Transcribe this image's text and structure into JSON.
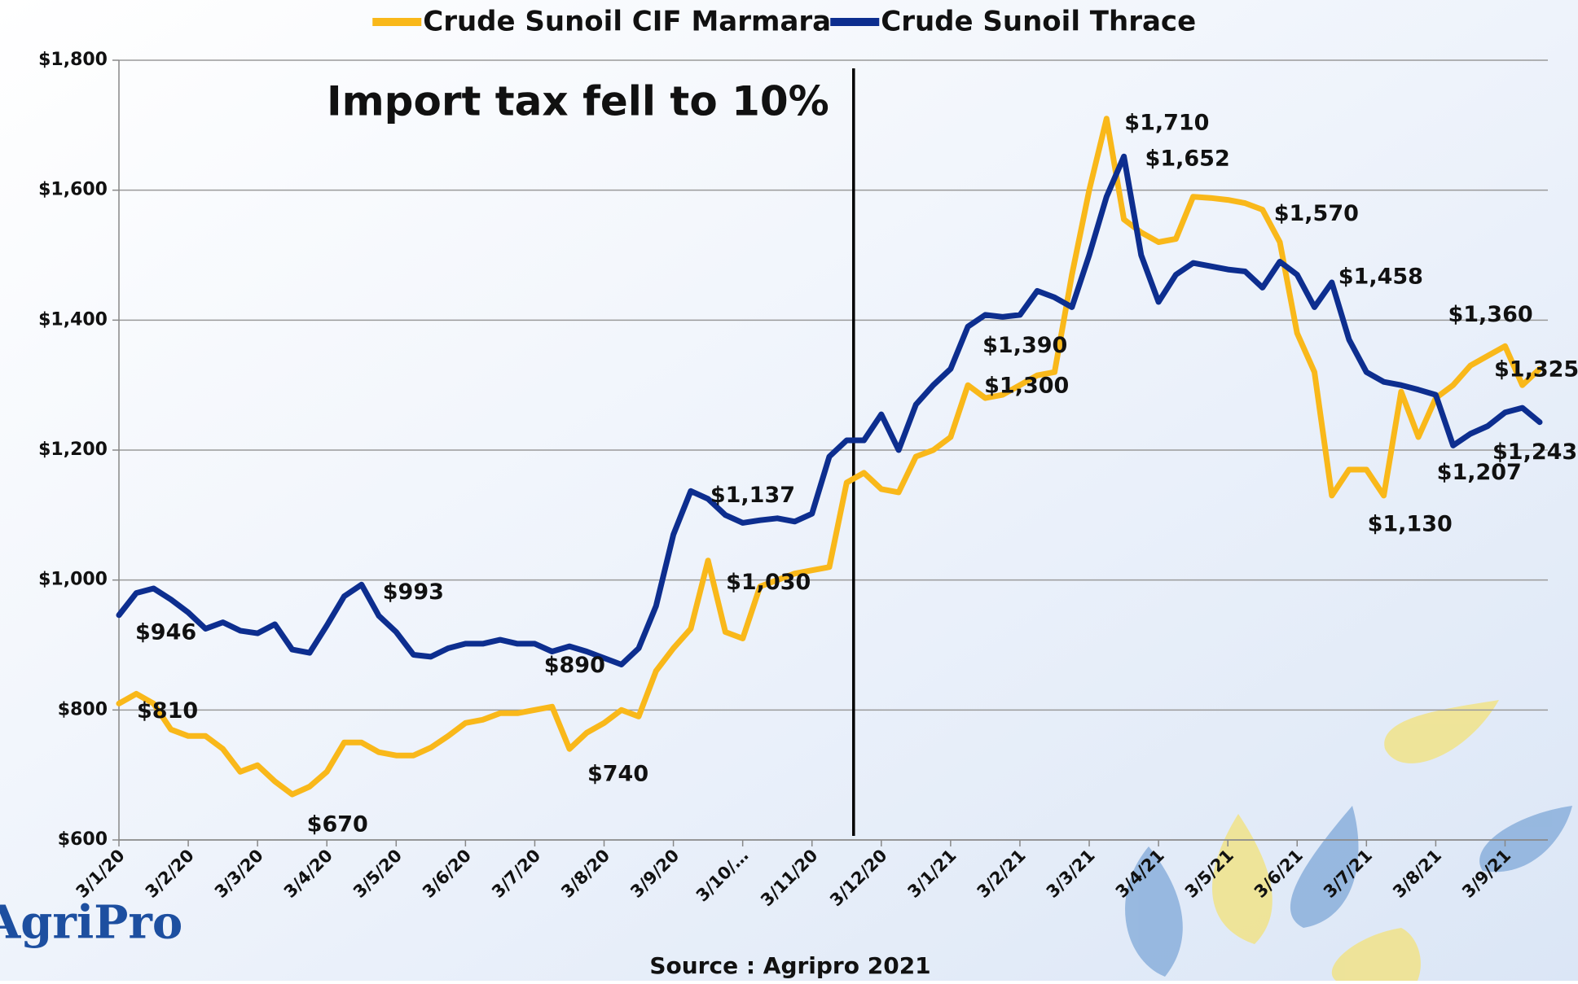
{
  "chart_data": {
    "type": "line",
    "legend": "top",
    "annotation": "Import tax fell to 10%",
    "source": "Source : Agripro 2021",
    "logo": "AgriPro",
    "categories": [
      "3/1/20",
      null,
      null,
      null,
      "3/2/20",
      null,
      null,
      null,
      "3/3/20",
      null,
      null,
      null,
      "3/4/20",
      null,
      null,
      null,
      "3/5/20",
      null,
      null,
      null,
      "3/6/20",
      null,
      null,
      null,
      "3/7/20",
      null,
      null,
      null,
      "3/8/20",
      null,
      null,
      null,
      "3/9/20",
      null,
      null,
      null,
      "3/10/…",
      null,
      null,
      null,
      "3/11/20",
      null,
      null,
      null,
      "3/12/20",
      null,
      null,
      null,
      "3/1/21",
      null,
      null,
      null,
      "3/2/21",
      null,
      null,
      null,
      "3/3/21",
      null,
      null,
      null,
      "3/4/21",
      null,
      null,
      null,
      "3/5/21",
      null,
      null,
      null,
      "3/6/21",
      null,
      null,
      null,
      "3/7/21",
      null,
      null,
      null,
      "3/8/21",
      null,
      null,
      null,
      "3/9/21",
      null,
      null
    ],
    "series": [
      {
        "name": "Crude Sunoil CIF Marmara",
        "color": "#f9b81a",
        "values": [
          810,
          825,
          810,
          770,
          760,
          760,
          740,
          705,
          715,
          690,
          670,
          682,
          705,
          750,
          750,
          735,
          730,
          730,
          742,
          760,
          780,
          785,
          795,
          795,
          800,
          805,
          740,
          765,
          780,
          800,
          790,
          860,
          895,
          925,
          1030,
          920,
          910,
          990,
          1000,
          1010,
          1015,
          1020,
          1150,
          1165,
          1140,
          1135,
          1190,
          1200,
          1220,
          1300,
          1280,
          1285,
          1300,
          1315,
          1320,
          1470,
          1600,
          1710,
          1555,
          1535,
          1520,
          1525,
          1590,
          1588,
          1585,
          1580,
          1570,
          1520,
          1380,
          1320,
          1130,
          1170,
          1170,
          1130,
          1290,
          1220,
          1280,
          1300,
          1330,
          1345,
          1360,
          1300,
          1325
        ],
        "value_labels": [
          "$810",
          null,
          null,
          null,
          null,
          null,
          null,
          null,
          null,
          null,
          "$670",
          null,
          null,
          null,
          null,
          null,
          null,
          null,
          null,
          null,
          null,
          null,
          null,
          null,
          null,
          null,
          "$740",
          null,
          null,
          null,
          null,
          null,
          null,
          null,
          "$1,030",
          null,
          null,
          null,
          null,
          null,
          null,
          null,
          null,
          null,
          null,
          null,
          null,
          null,
          null,
          "$1,300",
          null,
          null,
          null,
          null,
          null,
          null,
          null,
          "$1,710",
          null,
          null,
          null,
          null,
          null,
          null,
          null,
          null,
          "$1,570",
          null,
          null,
          null,
          null,
          null,
          null,
          "$1,130",
          null,
          null,
          null,
          null,
          null,
          null,
          "$1,360",
          null,
          "$1,325"
        ]
      },
      {
        "name": "Crude Sunoil Thrace",
        "color": "#0d2e8f",
        "values": [
          946,
          980,
          987,
          970,
          950,
          925,
          935,
          922,
          918,
          932,
          893,
          888,
          930,
          975,
          993,
          945,
          920,
          885,
          882,
          895,
          902,
          902,
          908,
          902,
          902,
          890,
          898,
          890,
          880,
          870,
          895,
          960,
          1070,
          1137,
          1125,
          1100,
          1088,
          1092,
          1095,
          1090,
          1102,
          1190,
          1215,
          1215,
          1255,
          1200,
          1270,
          1300,
          1325,
          1390,
          1408,
          1405,
          1408,
          1445,
          1435,
          1420,
          1500,
          1590,
          1652,
          1500,
          1428,
          1470,
          1488,
          1483,
          1478,
          1475,
          1450,
          1490,
          1470,
          1420,
          1458,
          1370,
          1320,
          1305,
          1300,
          1293,
          1285,
          1207,
          1225,
          1237,
          1258,
          1265,
          1243
        ],
        "value_labels": [
          "$946",
          null,
          null,
          null,
          null,
          null,
          null,
          null,
          null,
          null,
          null,
          null,
          null,
          null,
          "$993",
          null,
          null,
          null,
          null,
          null,
          null,
          null,
          null,
          null,
          null,
          "$890",
          null,
          null,
          null,
          null,
          null,
          null,
          null,
          "$1,137",
          null,
          null,
          null,
          null,
          null,
          null,
          null,
          null,
          null,
          null,
          null,
          null,
          null,
          null,
          null,
          "$1,390",
          null,
          null,
          null,
          null,
          null,
          null,
          null,
          null,
          "$1,652",
          null,
          null,
          null,
          null,
          null,
          null,
          null,
          null,
          null,
          null,
          null,
          "$1,458",
          null,
          null,
          null,
          null,
          null,
          null,
          "$1,207",
          null,
          null,
          null,
          null,
          "$1,243"
        ]
      }
    ],
    "ylim": [
      600,
      1800
    ],
    "yticks": [
      {
        "value": 600,
        "label": "$600"
      },
      {
        "value": 800,
        "label": "$800"
      },
      {
        "value": 1000,
        "label": "$1,000"
      },
      {
        "value": 1200,
        "label": "$1,200"
      },
      {
        "value": 1400,
        "label": "$1,400"
      },
      {
        "value": 1600,
        "label": "$1,600"
      },
      {
        "value": 1800,
        "label": "$1,800"
      }
    ],
    "grid": true
  }
}
